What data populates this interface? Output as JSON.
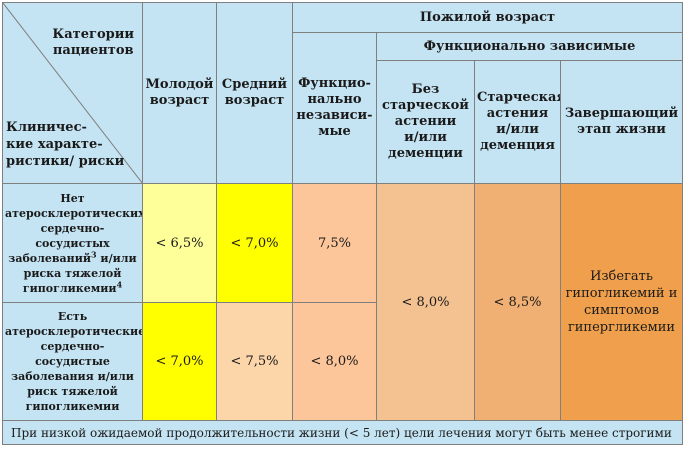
{
  "corner": {
    "top_right": [
      "Категории",
      "пациентов"
    ],
    "bottom_left": [
      "Клиничес-",
      "кие характе-",
      "ристики/ риски"
    ]
  },
  "headers": {
    "young": [
      "Молодой",
      "возраст"
    ],
    "middle": [
      "Средний",
      "возраст"
    ],
    "elderly": "Пожилой возраст",
    "independent": [
      "Функцио-",
      "нально",
      "независи-",
      "мые"
    ],
    "dependent": "Функционально зависимые",
    "no_asthenia": [
      "Без",
      "старческой",
      "астении",
      "и/или",
      "деменции"
    ],
    "asthenia": [
      "Старческая",
      "астения",
      "и/или",
      "деменция"
    ],
    "end_of_life": [
      "Завершающий",
      "этап жизни"
    ]
  },
  "rows": {
    "no_cvd": {
      "label": [
        "Нет",
        "атеросклеротических",
        "сердечно-сосудистых",
        "заболеваний",
        "3",
        " и/или",
        "риска тяжелой",
        "гипогликемии",
        "4"
      ],
      "young": "< 6,5%",
      "middle": "< 7,0%",
      "independent": "7,5%"
    },
    "cvd": {
      "label": [
        "Есть",
        "атеросклеротические",
        "сердечно-сосудистые",
        "заболевания и/или",
        "риск тяжелой",
        "гипогликемии"
      ],
      "young": "< 7,0%",
      "middle": "< 7,5%",
      "independent": "< 8,0%"
    },
    "shared": {
      "no_asthenia": "< 8,0%",
      "asthenia": "< 8,5%",
      "end_of_life": [
        "Избегать",
        "гипогликемий и",
        "симптомов",
        "гипергликемии"
      ]
    }
  },
  "footnote": "При низкой ожидаемой продолжительности жизни (< 5 лет) цели лечения могут быть менее строгими",
  "colors": {
    "header_bg": "#c5e4f3",
    "young_row1": "#ffff99",
    "young_row2": "#ffff00",
    "middle_row1": "#ffff00",
    "middle_row2": "#fcd5a9",
    "independent": "#fcc69a",
    "no_asthenia": "#f4c290",
    "asthenia": "#f0b073",
    "end_of_life": "#f0a04c",
    "border": "#7f7f7f"
  }
}
